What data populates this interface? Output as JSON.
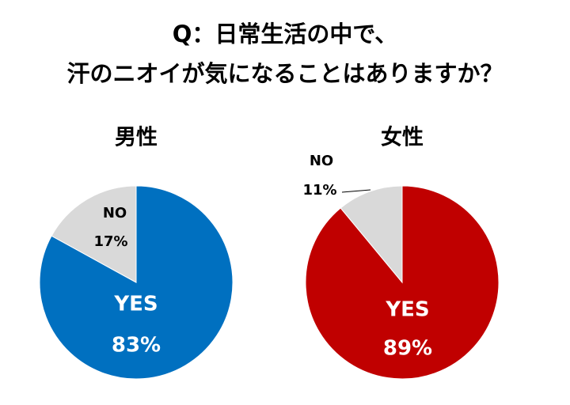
{
  "title": [
    "Q：日常生活の中で、",
    "汗のニオイが気になることはありますか？"
  ],
  "chart_data": [
    {
      "type": "pie",
      "title": "男性",
      "categories": [
        "YES",
        "NO"
      ],
      "values": [
        83,
        17
      ],
      "value_labels": [
        "83%",
        "17%"
      ],
      "colors": [
        "#0070c0",
        "#d9d9d9"
      ]
    },
    {
      "type": "pie",
      "title": "女性",
      "categories": [
        "YES",
        "NO"
      ],
      "values": [
        89,
        11
      ],
      "value_labels": [
        "89%",
        "11%"
      ],
      "colors": [
        "#c00000",
        "#d9d9d9"
      ]
    }
  ]
}
